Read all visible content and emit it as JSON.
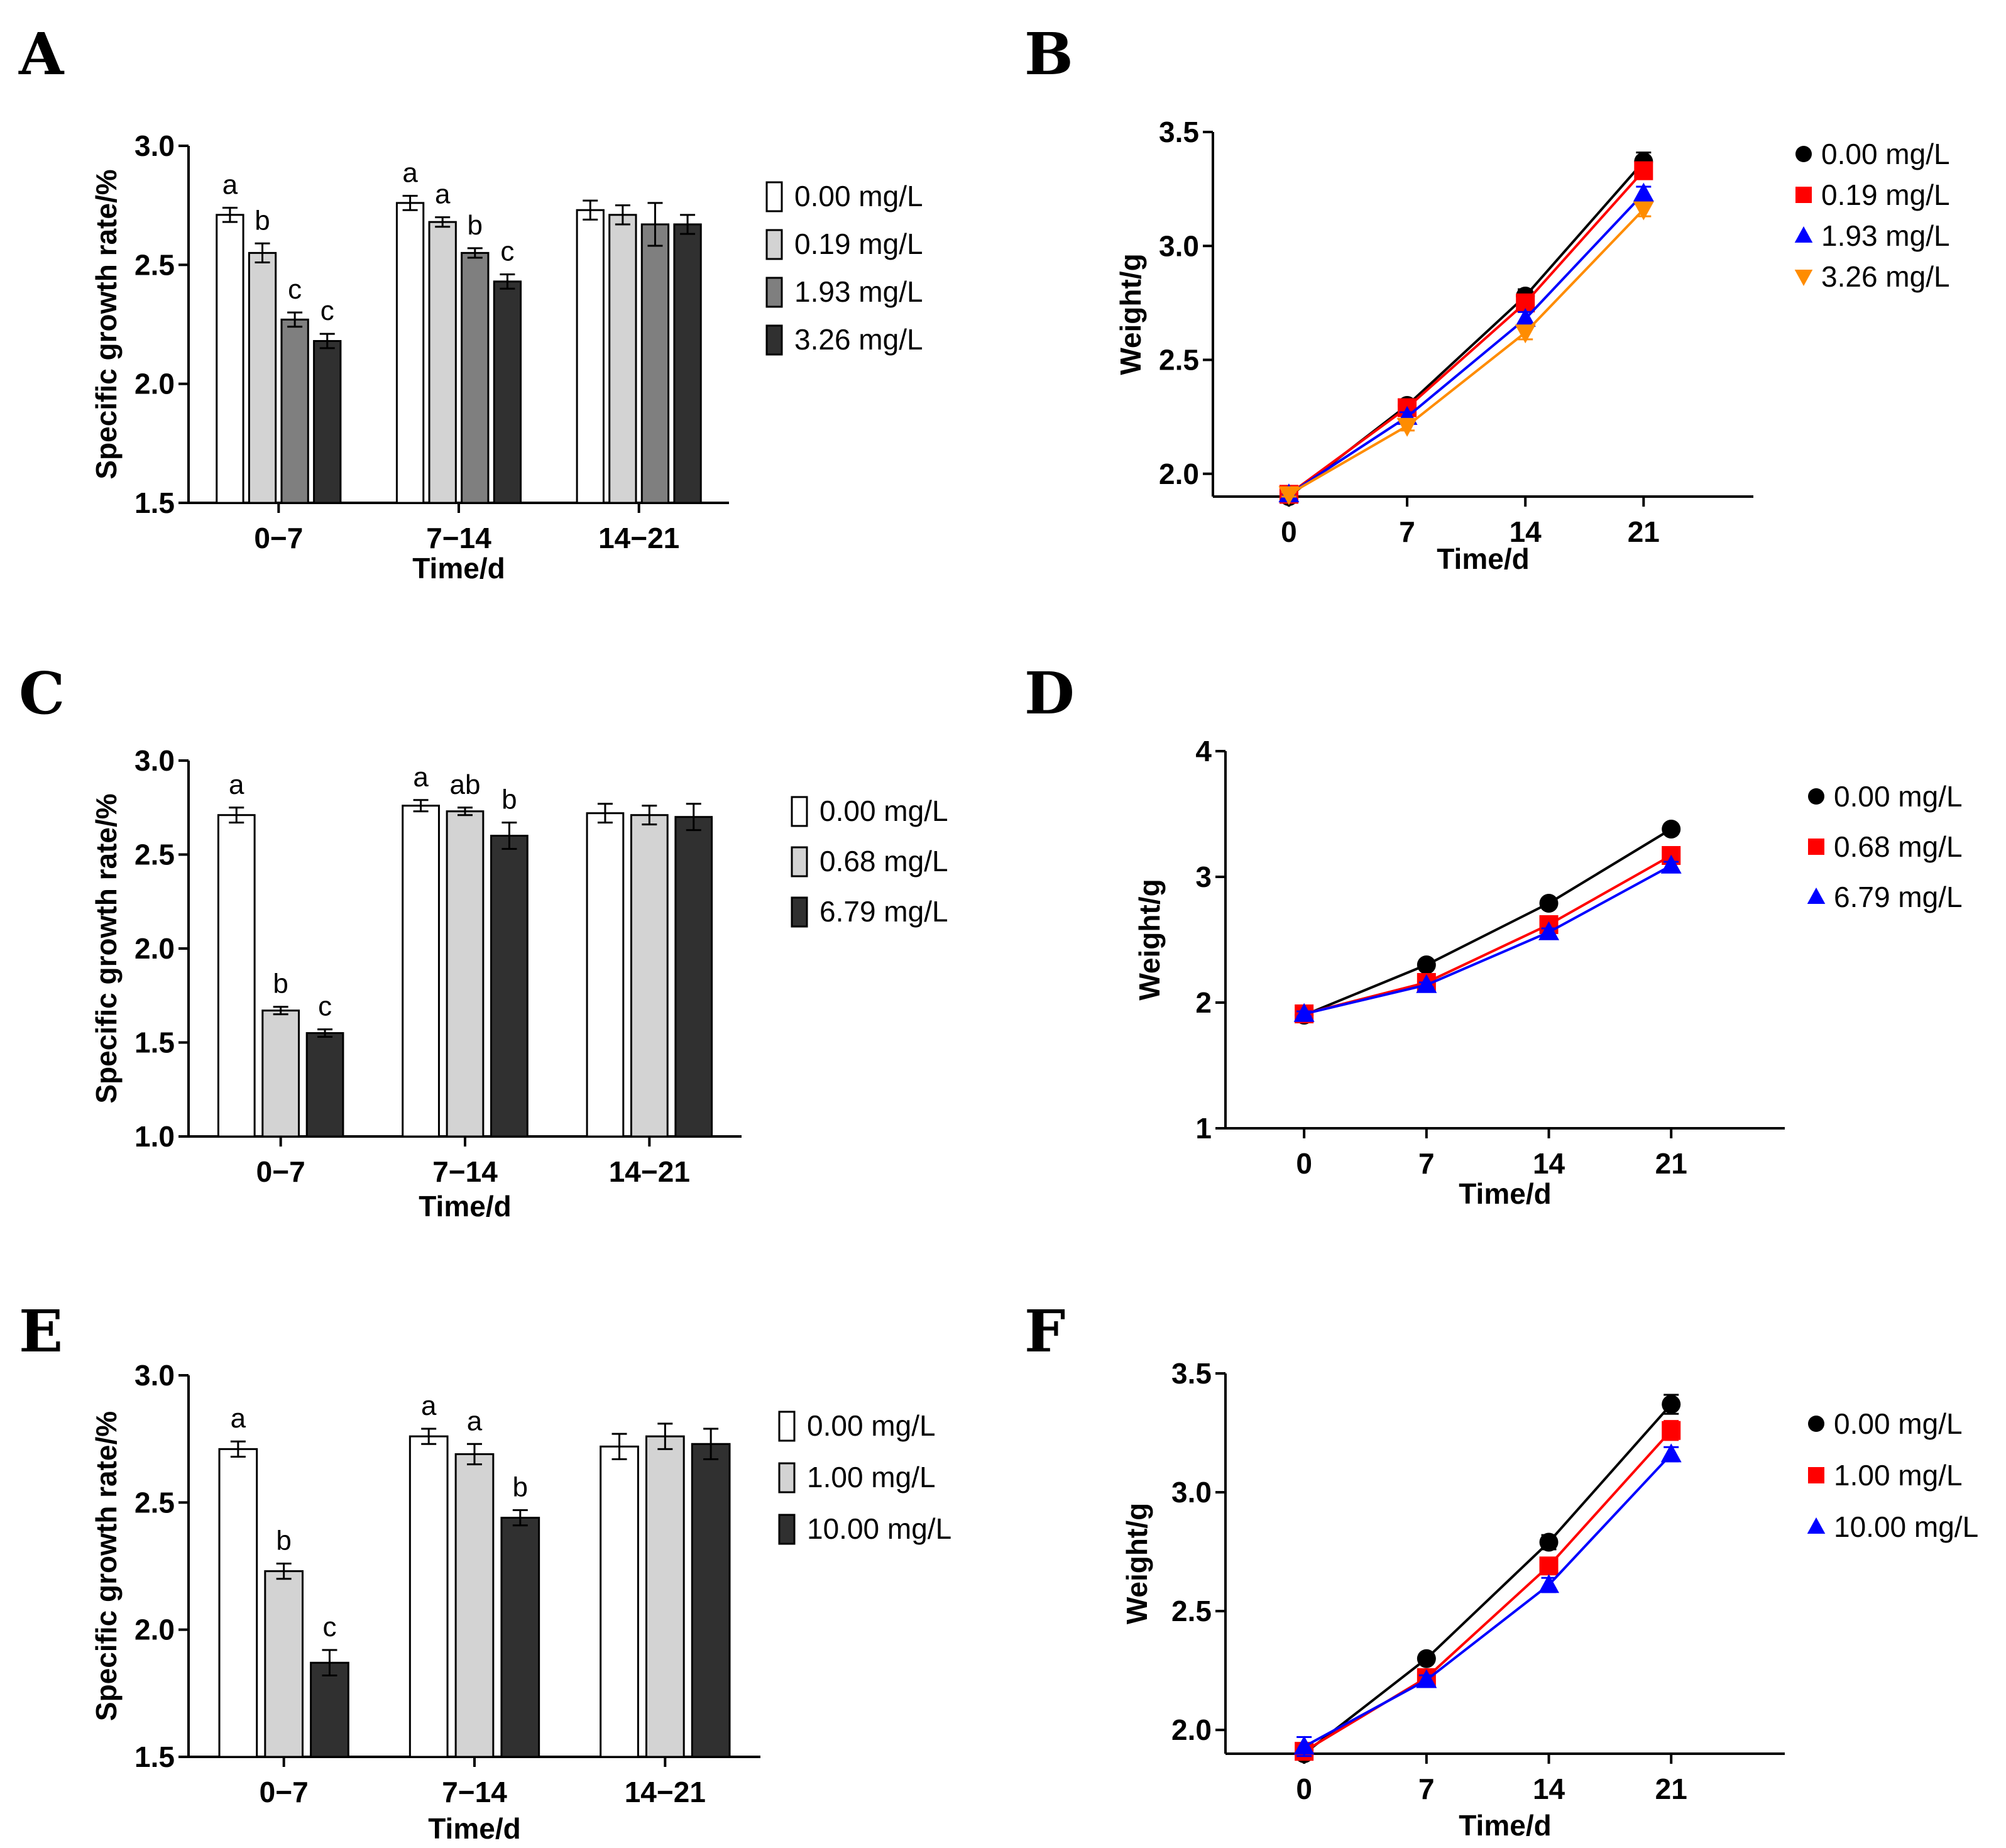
{
  "chart_data": [
    {
      "panel": "A",
      "type": "bar",
      "xlabel": "Time/d",
      "ylabel": "Specific growth rate/%",
      "categories": [
        "0−7",
        "7−14",
        "14−21"
      ],
      "ylim": [
        1.5,
        3.0
      ],
      "yticks": [
        "1.5",
        "2.0",
        "2.5",
        "3.0"
      ],
      "legend_position": "right",
      "series": [
        {
          "name": "0.00 mg/L",
          "color": "#ffffff",
          "values": [
            2.71,
            2.76,
            2.73
          ],
          "errors": [
            0.03,
            0.03,
            0.04
          ],
          "letters": [
            "a",
            "a",
            ""
          ]
        },
        {
          "name": "0.19 mg/L",
          "color": "#d3d3d3",
          "values": [
            2.55,
            2.68,
            2.71
          ],
          "errors": [
            0.04,
            0.02,
            0.04
          ],
          "letters": [
            "b",
            "a",
            ""
          ]
        },
        {
          "name": "1.93 mg/L",
          "color": "#7f7f7f",
          "values": [
            2.27,
            2.55,
            2.67
          ],
          "errors": [
            0.03,
            0.02,
            0.09
          ],
          "letters": [
            "c",
            "b",
            ""
          ]
        },
        {
          "name": "3.26 mg/L",
          "color": "#303030",
          "values": [
            2.18,
            2.43,
            2.67
          ],
          "errors": [
            0.03,
            0.03,
            0.04
          ],
          "letters": [
            "c",
            "c",
            ""
          ]
        }
      ]
    },
    {
      "panel": "B",
      "type": "line",
      "xlabel": "Time/d",
      "ylabel": "Weight/g",
      "x": [
        0,
        7,
        14,
        21
      ],
      "xticks": [
        "0",
        "7",
        "14",
        "21"
      ],
      "xlim": [
        -4.5,
        27.5
      ],
      "ylim": [
        1.9,
        3.5
      ],
      "yticks": [
        "2.0",
        "2.5",
        "3.0",
        "3.5"
      ],
      "legend_position": "right",
      "series": [
        {
          "name": "0.00 mg/L",
          "color": "#000000",
          "marker": "circle",
          "values": [
            1.9,
            2.3,
            2.78,
            3.37
          ],
          "errors": [
            0.01,
            0.02,
            0.03,
            0.04
          ]
        },
        {
          "name": "0.19 mg/L",
          "color": "#ff0000",
          "marker": "square",
          "values": [
            1.91,
            2.29,
            2.75,
            3.33
          ],
          "errors": [
            0.01,
            0.02,
            0.03,
            0.03
          ]
        },
        {
          "name": "1.93 mg/L",
          "color": "#0000ff",
          "marker": "triangle-up",
          "values": [
            1.91,
            2.25,
            2.68,
            3.23
          ],
          "errors": [
            0.01,
            0.02,
            0.03,
            0.03
          ]
        },
        {
          "name": "3.26 mg/L",
          "color": "#ff8c00",
          "marker": "triangle-down",
          "values": [
            1.91,
            2.21,
            2.62,
            3.16
          ],
          "errors": [
            0.01,
            0.02,
            0.03,
            0.03
          ]
        }
      ]
    },
    {
      "panel": "C",
      "type": "bar",
      "xlabel": "Time/d",
      "ylabel": "Specific growth rate/%",
      "categories": [
        "0−7",
        "7−14",
        "14−21"
      ],
      "ylim": [
        1.0,
        3.0
      ],
      "yticks": [
        "1.0",
        "1.5",
        "2.0",
        "2.5",
        "3.0"
      ],
      "legend_position": "right",
      "series": [
        {
          "name": "0.00 mg/L",
          "color": "#ffffff",
          "values": [
            2.71,
            2.76,
            2.72
          ],
          "errors": [
            0.04,
            0.03,
            0.05
          ],
          "letters": [
            "a",
            "a",
            ""
          ]
        },
        {
          "name": "0.68 mg/L",
          "color": "#d3d3d3",
          "values": [
            1.67,
            2.73,
            2.71
          ],
          "errors": [
            0.02,
            0.02,
            0.05
          ],
          "letters": [
            "b",
            "ab",
            ""
          ]
        },
        {
          "name": "6.79 mg/L",
          "color": "#303030",
          "values": [
            1.55,
            2.6,
            2.7
          ],
          "errors": [
            0.02,
            0.07,
            0.07
          ],
          "letters": [
            "c",
            "b",
            ""
          ]
        }
      ]
    },
    {
      "panel": "D",
      "type": "line",
      "xlabel": "Time/d",
      "ylabel": "Weight/g",
      "x": [
        0,
        7,
        14,
        21
      ],
      "xticks": [
        "0",
        "7",
        "14",
        "21"
      ],
      "xlim": [
        -4.5,
        27.5
      ],
      "ylim": [
        1,
        4
      ],
      "yticks": [
        "1",
        "2",
        "3",
        "4"
      ],
      "legend_position": "right",
      "series": [
        {
          "name": "0.00 mg/L",
          "color": "#000000",
          "marker": "circle",
          "values": [
            1.9,
            2.3,
            2.79,
            3.38
          ],
          "errors": [
            0.02,
            0.02,
            0.03,
            0.04
          ]
        },
        {
          "name": "0.68 mg/L",
          "color": "#ff0000",
          "marker": "square",
          "values": [
            1.91,
            2.16,
            2.62,
            3.17
          ],
          "errors": [
            0.02,
            0.02,
            0.03,
            0.03
          ]
        },
        {
          "name": "6.79 mg/L",
          "color": "#0000ff",
          "marker": "triangle-up",
          "values": [
            1.91,
            2.14,
            2.56,
            3.09
          ],
          "errors": [
            0.02,
            0.02,
            0.03,
            0.03
          ]
        }
      ]
    },
    {
      "panel": "E",
      "type": "bar",
      "xlabel": "Time/d",
      "ylabel": "Specific growth rate/%",
      "categories": [
        "0−7",
        "7−14",
        "14−21"
      ],
      "ylim": [
        1.5,
        3.0
      ],
      "yticks": [
        "1.5",
        "2.0",
        "2.5",
        "3.0"
      ],
      "legend_position": "right",
      "series": [
        {
          "name": "0.00 mg/L",
          "color": "#ffffff",
          "values": [
            2.71,
            2.76,
            2.72
          ],
          "errors": [
            0.03,
            0.03,
            0.05
          ],
          "letters": [
            "a",
            "a",
            ""
          ]
        },
        {
          "name": "1.00 mg/L",
          "color": "#d3d3d3",
          "values": [
            2.23,
            2.69,
            2.76
          ],
          "errors": [
            0.03,
            0.04,
            0.05
          ],
          "letters": [
            "b",
            "a",
            ""
          ]
        },
        {
          "name": "10.00 mg/L",
          "color": "#303030",
          "values": [
            1.87,
            2.44,
            2.73
          ],
          "errors": [
            0.05,
            0.03,
            0.06
          ],
          "letters": [
            "c",
            "b",
            ""
          ]
        }
      ]
    },
    {
      "panel": "F",
      "type": "line",
      "xlabel": "Time/d",
      "ylabel": "Weight/g",
      "x": [
        0,
        7,
        14,
        21
      ],
      "xticks": [
        "0",
        "7",
        "14",
        "21"
      ],
      "xlim": [
        -4.5,
        27.5
      ],
      "ylim": [
        1.9,
        3.5
      ],
      "yticks": [
        "2.0",
        "2.5",
        "3.0",
        "3.5"
      ],
      "legend_position": "right",
      "series": [
        {
          "name": "0.00 mg/L",
          "color": "#000000",
          "marker": "circle",
          "values": [
            1.9,
            2.3,
            2.79,
            3.37
          ],
          "errors": [
            0.02,
            0.02,
            0.03,
            0.04
          ]
        },
        {
          "name": "1.00 mg/L",
          "color": "#ff0000",
          "marker": "square",
          "values": [
            1.91,
            2.22,
            2.69,
            3.26
          ],
          "errors": [
            0.03,
            0.02,
            0.03,
            0.04
          ]
        },
        {
          "name": "10.00 mg/L",
          "color": "#0000ff",
          "marker": "triangle-up",
          "values": [
            1.93,
            2.21,
            2.61,
            3.16
          ],
          "errors": [
            0.04,
            0.02,
            0.03,
            0.03
          ]
        }
      ]
    }
  ]
}
